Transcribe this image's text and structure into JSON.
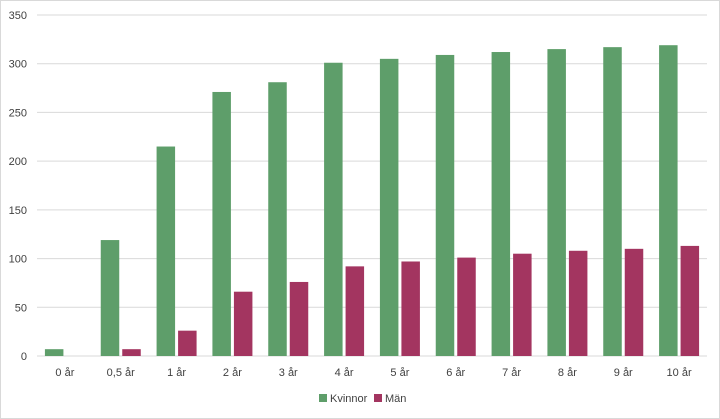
{
  "chart_data": {
    "type": "bar",
    "title": "",
    "xlabel": "",
    "ylabel": "",
    "ylim": [
      0,
      350
    ],
    "yticks": [
      0,
      50,
      100,
      150,
      200,
      250,
      300,
      350
    ],
    "grid": true,
    "legend_position": "bottom",
    "categories": [
      "0 år",
      "0,5 år",
      "1 år",
      "2 år",
      "3 år",
      "4 år",
      "5 år",
      "6 år",
      "7 år",
      "8 år",
      "9 år",
      "10 år"
    ],
    "series": [
      {
        "name": "Kvinnor",
        "color": "#5e9e6a",
        "values": [
          7,
          119,
          215,
          271,
          281,
          301,
          305,
          309,
          312,
          315,
          317,
          319
        ]
      },
      {
        "name": "Män",
        "color": "#a33560",
        "values": [
          0,
          7,
          26,
          66,
          76,
          92,
          97,
          101,
          105,
          108,
          110,
          113
        ]
      }
    ]
  }
}
